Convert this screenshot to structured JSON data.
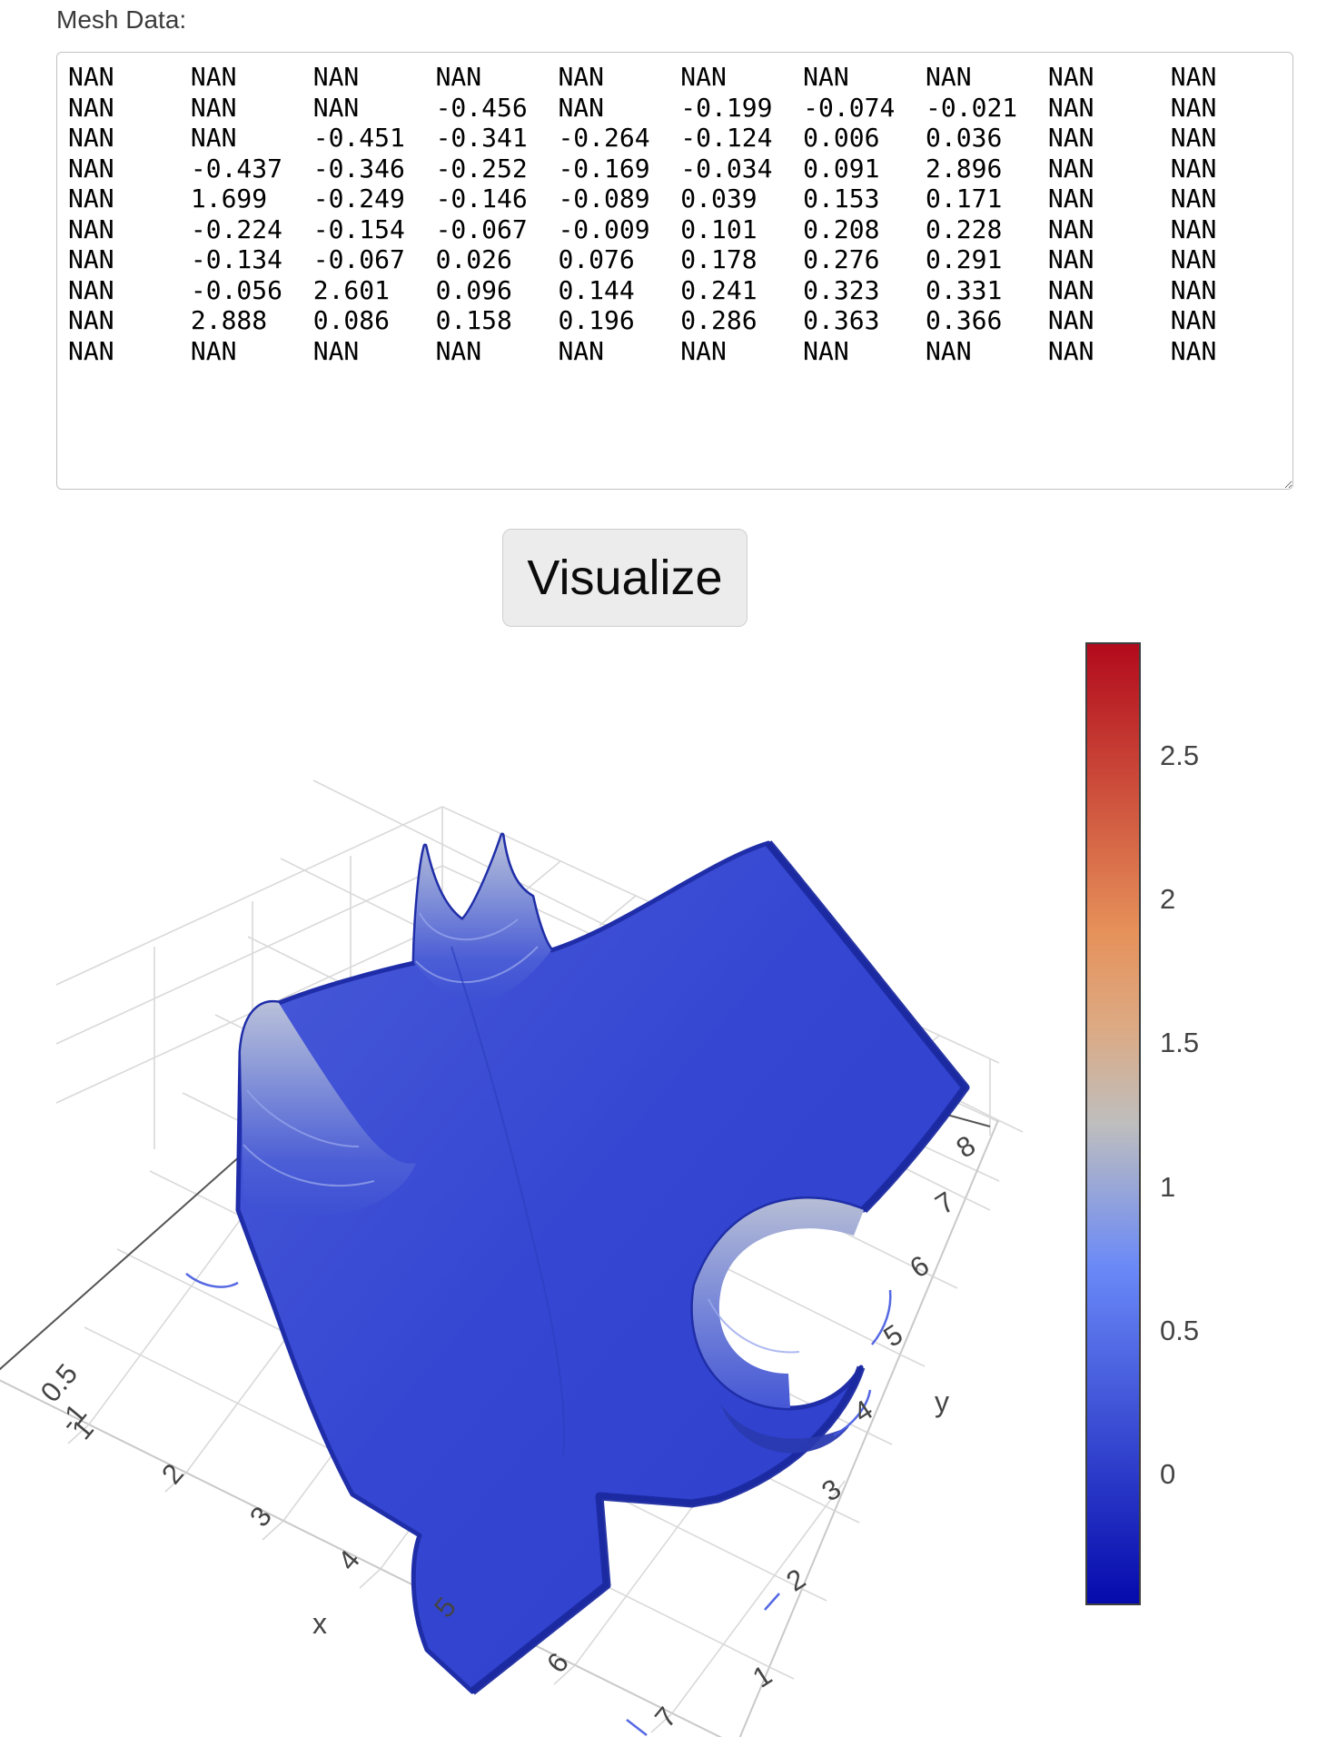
{
  "page": {
    "mesh_label": "Mesh Data:",
    "visualize_button": "Visualize"
  },
  "mesh_input": {
    "rows": [
      "NAN\tNAN\tNAN\tNAN\tNAN\tNAN\tNAN\tNAN\tNAN\tNAN",
      "NAN\tNAN\tNAN\t-0.456\tNAN\t-0.199\t-0.074\t-0.021\tNAN\tNAN",
      "NAN\tNAN\t-0.451\t-0.341\t-0.264\t-0.124\t0.006\t0.036\tNAN\tNAN",
      "NAN\t-0.437\t-0.346\t-0.252\t-0.169\t-0.034\t0.091\t2.896\tNAN\tNAN",
      "NAN\t1.699\t-0.249\t-0.146\t-0.089\t0.039\t0.153\t0.171\tNAN\tNAN",
      "NAN\t-0.224\t-0.154\t-0.067\t-0.009\t0.101\t0.208\t0.228\tNAN\tNAN",
      "NAN\t-0.134\t-0.067\t0.026\t0.076\t0.178\t0.276\t0.291\tNAN\tNAN",
      "NAN\t-0.056\t2.601\t0.096\t0.144\t0.241\t0.323\t0.331\tNAN\tNAN",
      "NAN\t2.888\t0.086\t0.158\t0.196\t0.286\t0.363\t0.366\tNAN\tNAN",
      "NAN\tNAN\tNAN\tNAN\tNAN\tNAN\tNAN\tNAN\tNAN\tNAN"
    ]
  },
  "chart_data": {
    "type": "surface",
    "title": "",
    "xlabel": "x",
    "ylabel": "y",
    "x_ticks": [
      "1",
      "2",
      "3",
      "4",
      "5",
      "6",
      "7"
    ],
    "y_ticks": [
      "1",
      "2",
      "3",
      "4",
      "5",
      "6",
      "7",
      "8"
    ],
    "z_ticks_visible": [
      "0.5",
      "-1"
    ],
    "surface_color": "#3447d1",
    "grid_color": "#d9d9d9",
    "tick_color": "#444444",
    "z_matrix": [
      [
        null,
        null,
        null,
        null,
        null,
        null,
        null,
        null,
        null,
        null
      ],
      [
        null,
        null,
        null,
        -0.456,
        null,
        -0.199,
        -0.074,
        -0.021,
        null,
        null
      ],
      [
        null,
        null,
        -0.451,
        -0.341,
        -0.264,
        -0.124,
        0.006,
        0.036,
        null,
        null
      ],
      [
        null,
        -0.437,
        -0.346,
        -0.252,
        -0.169,
        -0.034,
        0.091,
        2.896,
        null,
        null
      ],
      [
        null,
        1.699,
        -0.249,
        -0.146,
        -0.089,
        0.039,
        0.153,
        0.171,
        null,
        null
      ],
      [
        null,
        -0.224,
        -0.154,
        -0.067,
        -0.009,
        0.101,
        0.208,
        0.228,
        null,
        null
      ],
      [
        null,
        -0.134,
        -0.067,
        0.026,
        0.076,
        0.178,
        0.276,
        0.291,
        null,
        null
      ],
      [
        null,
        -0.056,
        2.601,
        0.096,
        0.144,
        0.241,
        0.323,
        0.331,
        null,
        null
      ],
      [
        null,
        2.888,
        0.086,
        0.158,
        0.196,
        0.286,
        0.363,
        0.366,
        null,
        null
      ],
      [
        null,
        null,
        null,
        null,
        null,
        null,
        null,
        null,
        null,
        null
      ]
    ],
    "colorbar": {
      "tick_labels": [
        "2.5",
        "2",
        "1.5",
        "1",
        "0.5",
        "0"
      ],
      "tick_values": [
        2.5,
        2.0,
        1.5,
        1.0,
        0.5,
        0.0
      ],
      "min": -0.456,
      "max": 2.896,
      "colorscale": [
        [
          0.0,
          "#050aac"
        ],
        [
          0.35,
          "#6a89f7"
        ],
        [
          0.5,
          "#bebebe"
        ],
        [
          0.6,
          "#dcaa84"
        ],
        [
          0.7,
          "#e6915a"
        ],
        [
          1.0,
          "#b20a1c"
        ]
      ]
    }
  }
}
